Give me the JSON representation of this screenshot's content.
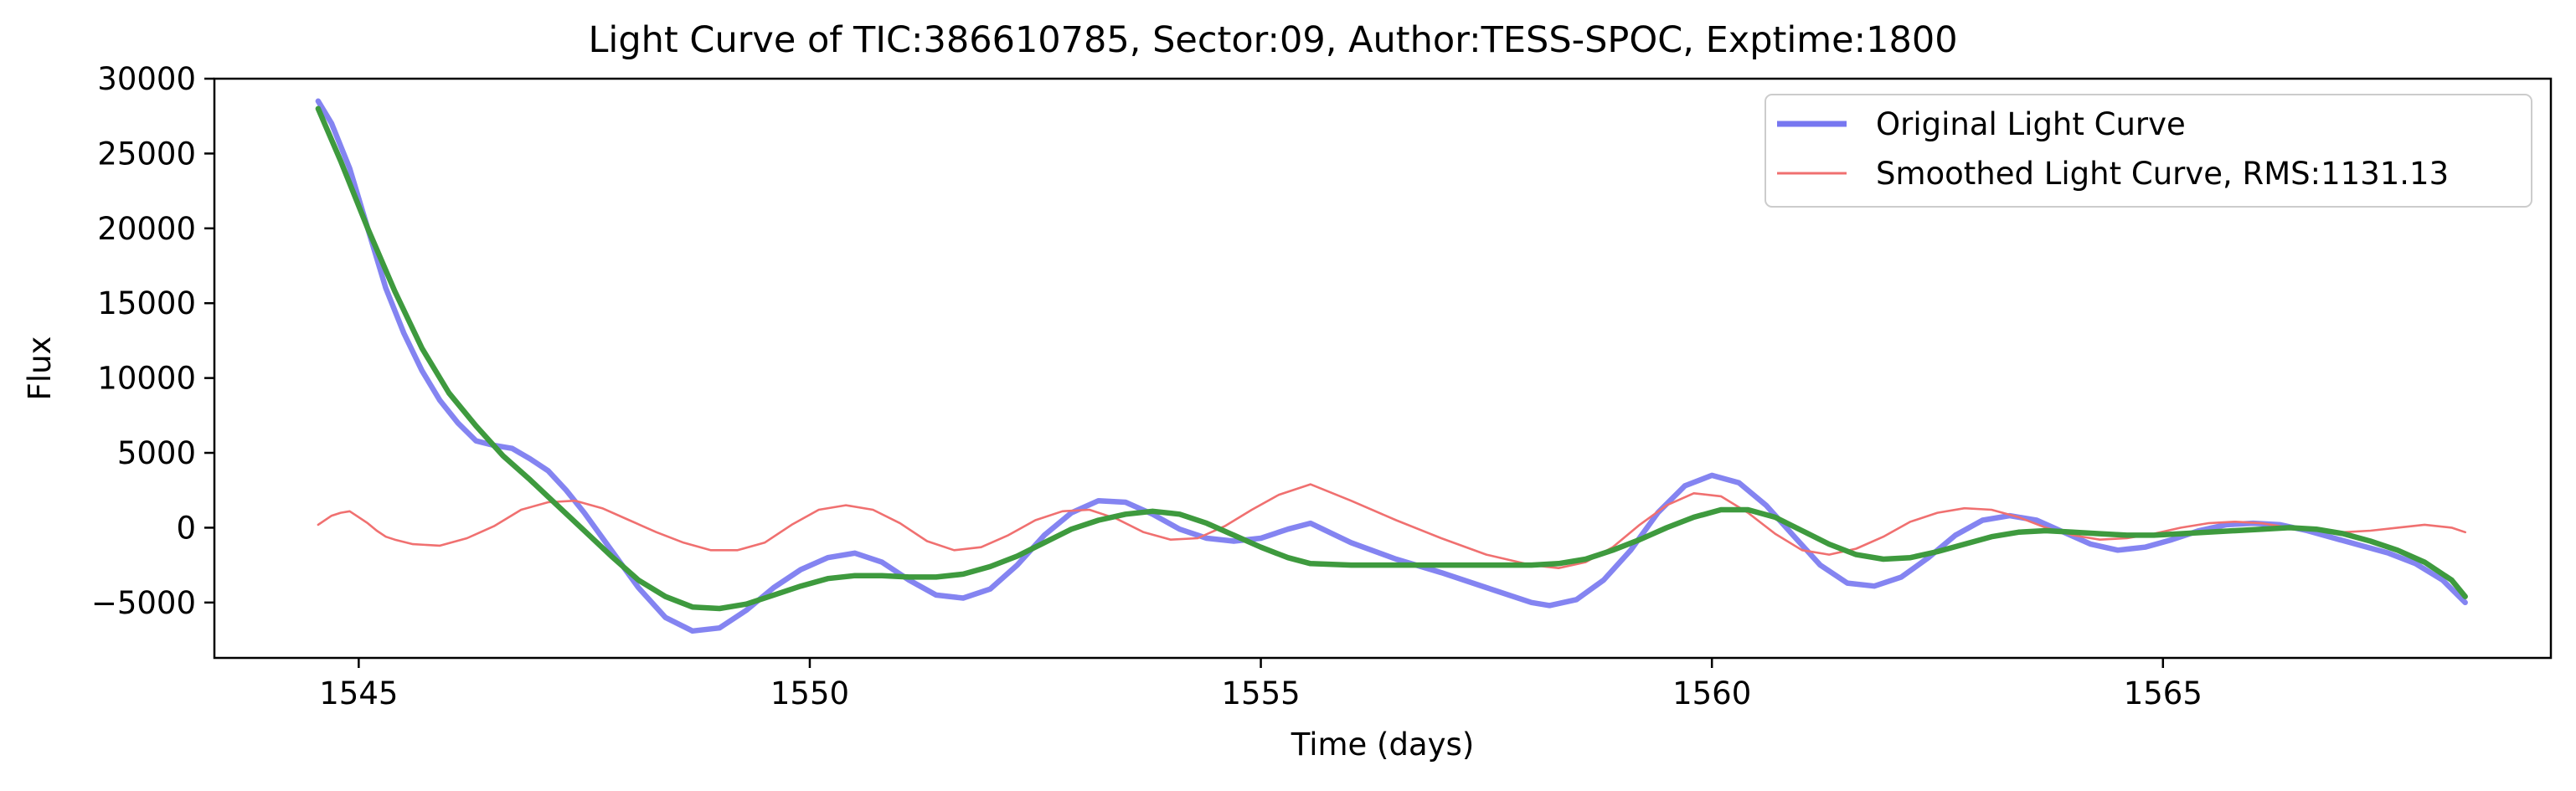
{
  "chart_data": {
    "type": "line",
    "title": "Light Curve of TIC:386610785, Sector:09, Author:TESS-SPOC, Exptime:1800",
    "xlabel": "Time (days)",
    "ylabel": "Flux",
    "xlim": [
      1543.4,
      1569.3
    ],
    "ylim": [
      -8700,
      30000
    ],
    "x_ticks": [
      1545,
      1550,
      1555,
      1560,
      1565
    ],
    "x_tick_labels": [
      "1545",
      "1550",
      "1555",
      "1560",
      "1565"
    ],
    "y_ticks": [
      -5000,
      0,
      5000,
      10000,
      15000,
      20000,
      25000,
      30000
    ],
    "y_tick_labels": [
      "−5000",
      "0",
      "5000",
      "10000",
      "15000",
      "20000",
      "25000",
      "30000"
    ],
    "grid": false,
    "legend_position": "top-right",
    "series": [
      {
        "name": "Original Light Curve",
        "color": "#7777f0",
        "x": [
          1544.55,
          1544.7,
          1544.9,
          1545.1,
          1545.3,
          1545.5,
          1545.7,
          1545.9,
          1546.1,
          1546.3,
          1546.5,
          1546.7,
          1546.9,
          1547.1,
          1547.3,
          1547.5,
          1547.8,
          1548.1,
          1548.4,
          1548.7,
          1549.0,
          1549.3,
          1549.6,
          1549.9,
          1550.2,
          1550.5,
          1550.8,
          1551.1,
          1551.4,
          1551.7,
          1552.0,
          1552.3,
          1552.6,
          1552.9,
          1553.2,
          1553.5,
          1553.8,
          1554.1,
          1554.4,
          1554.7,
          1555.0,
          1555.3,
          1555.55,
          1556.0,
          1556.5,
          1557.0,
          1557.5,
          1558.0,
          1558.2,
          1558.5,
          1558.8,
          1559.1,
          1559.4,
          1559.7,
          1560.0,
          1560.3,
          1560.6,
          1560.9,
          1561.2,
          1561.5,
          1561.8,
          1562.1,
          1562.4,
          1562.7,
          1563.0,
          1563.3,
          1563.6,
          1563.9,
          1564.2,
          1564.5,
          1564.8,
          1565.1,
          1565.4,
          1565.7,
          1566.0,
          1566.3,
          1566.6,
          1566.9,
          1567.2,
          1567.5,
          1567.8,
          1568.1,
          1568.35
        ],
        "y": [
          28500,
          27000,
          24000,
          20000,
          16000,
          13000,
          10500,
          8500,
          7000,
          5800,
          5500,
          5300,
          4600,
          3800,
          2500,
          1000,
          -1500,
          -4000,
          -6000,
          -6900,
          -6700,
          -5500,
          -4000,
          -2800,
          -2000,
          -1700,
          -2300,
          -3500,
          -4500,
          -4700,
          -4100,
          -2500,
          -500,
          1000,
          1800,
          1700,
          900,
          -100,
          -700,
          -900,
          -700,
          -100,
          300,
          -1000,
          -2100,
          -3000,
          -4000,
          -5000,
          -5200,
          -4800,
          -3500,
          -1500,
          1000,
          2800,
          3500,
          3000,
          1500,
          -500,
          -2500,
          -3700,
          -3900,
          -3300,
          -2000,
          -500,
          500,
          800,
          500,
          -300,
          -1100,
          -1500,
          -1300,
          -800,
          -200,
          200,
          300,
          200,
          -200,
          -700,
          -1200,
          -1700,
          -2400,
          -3500,
          -5000
        ]
      },
      {
        "name": "Smoothed Light Curve, RMS:1131.13",
        "color": "#f07070",
        "x": [
          1544.55,
          1544.7,
          1544.8,
          1544.9,
          1545.0,
          1545.1,
          1545.2,
          1545.3,
          1545.4,
          1545.6,
          1545.9,
          1546.2,
          1546.5,
          1546.8,
          1547.1,
          1547.4,
          1547.7,
          1548.0,
          1548.3,
          1548.6,
          1548.9,
          1549.2,
          1549.5,
          1549.8,
          1550.1,
          1550.4,
          1550.7,
          1551.0,
          1551.3,
          1551.6,
          1551.9,
          1552.2,
          1552.5,
          1552.8,
          1553.1,
          1553.4,
          1553.7,
          1554.0,
          1554.3,
          1554.6,
          1554.9,
          1555.2,
          1555.55,
          1556.0,
          1556.5,
          1557.0,
          1557.5,
          1558.0,
          1558.3,
          1558.6,
          1558.9,
          1559.2,
          1559.5,
          1559.8,
          1560.1,
          1560.4,
          1560.7,
          1561.0,
          1561.3,
          1561.6,
          1561.9,
          1562.2,
          1562.5,
          1562.8,
          1563.1,
          1563.4,
          1563.7,
          1564.0,
          1564.3,
          1564.6,
          1564.9,
          1565.2,
          1565.5,
          1565.8,
          1566.1,
          1566.4,
          1566.7,
          1567.0,
          1567.3,
          1567.6,
          1567.9,
          1568.2,
          1568.35
        ],
        "y": [
          200,
          800,
          1000,
          1100,
          700,
          300,
          -200,
          -600,
          -800,
          -1100,
          -1200,
          -700,
          100,
          1200,
          1700,
          1800,
          1300,
          500,
          -300,
          -1000,
          -1500,
          -1500,
          -1000,
          200,
          1200,
          1500,
          1200,
          300,
          -900,
          -1500,
          -1300,
          -500,
          500,
          1100,
          1200,
          600,
          -300,
          -800,
          -700,
          100,
          1200,
          2200,
          2900,
          1800,
          500,
          -700,
          -1800,
          -2500,
          -2700,
          -2300,
          -1300,
          200,
          1500,
          2300,
          2100,
          1000,
          -400,
          -1500,
          -1800,
          -1400,
          -600,
          400,
          1000,
          1300,
          1200,
          700,
          0,
          -500,
          -800,
          -700,
          -400,
          0,
          300,
          400,
          300,
          0,
          -200,
          -300,
          -200,
          0,
          200,
          0,
          -300
        ]
      },
      {
        "name": "",
        "color": "#3e9a3e",
        "x": [
          1544.55,
          1544.8,
          1545.1,
          1545.4,
          1545.7,
          1546.0,
          1546.3,
          1546.6,
          1546.9,
          1547.2,
          1547.5,
          1547.8,
          1548.1,
          1548.4,
          1548.7,
          1549.0,
          1549.3,
          1549.6,
          1549.9,
          1550.2,
          1550.5,
          1550.8,
          1551.1,
          1551.4,
          1551.7,
          1552.0,
          1552.3,
          1552.6,
          1552.9,
          1553.2,
          1553.5,
          1553.8,
          1554.1,
          1554.4,
          1554.7,
          1555.0,
          1555.3,
          1555.55,
          1556.0,
          1556.5,
          1557.0,
          1557.5,
          1558.0,
          1558.3,
          1558.6,
          1558.9,
          1559.2,
          1559.5,
          1559.8,
          1560.1,
          1560.4,
          1560.7,
          1561.0,
          1561.3,
          1561.6,
          1561.9,
          1562.2,
          1562.5,
          1562.8,
          1563.1,
          1563.4,
          1563.7,
          1564.0,
          1564.3,
          1564.6,
          1564.9,
          1565.2,
          1565.5,
          1565.8,
          1566.1,
          1566.4,
          1566.7,
          1567.0,
          1567.3,
          1567.6,
          1567.9,
          1568.2,
          1568.35
        ],
        "y": [
          28000,
          24500,
          20000,
          15800,
          12000,
          9000,
          6800,
          4800,
          3200,
          1500,
          -200,
          -1900,
          -3500,
          -4600,
          -5300,
          -5400,
          -5100,
          -4500,
          -3900,
          -3400,
          -3200,
          -3200,
          -3300,
          -3300,
          -3100,
          -2600,
          -1900,
          -1000,
          -100,
          500,
          900,
          1100,
          900,
          300,
          -500,
          -1300,
          -2000,
          -2400,
          -2500,
          -2500,
          -2500,
          -2500,
          -2500,
          -2400,
          -2100,
          -1500,
          -800,
          0,
          700,
          1200,
          1200,
          700,
          -200,
          -1100,
          -1800,
          -2100,
          -2000,
          -1600,
          -1100,
          -600,
          -300,
          -200,
          -300,
          -400,
          -500,
          -500,
          -400,
          -300,
          -200,
          -100,
          0,
          -100,
          -400,
          -900,
          -1500,
          -2300,
          -3500,
          -4600
        ]
      }
    ]
  }
}
